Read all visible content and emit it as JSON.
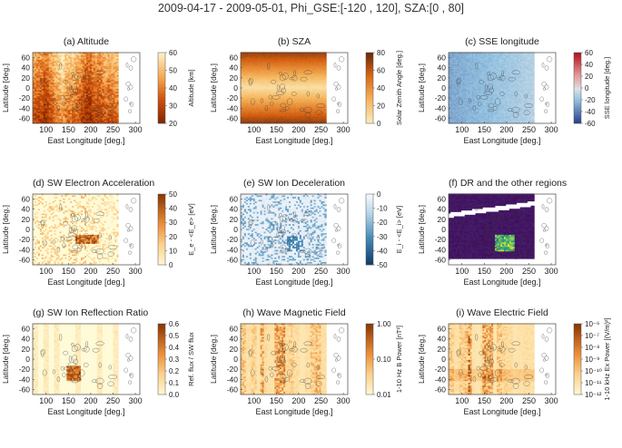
{
  "figure": {
    "title": "2009-04-17 - 2009-05-01, Phi_GSE:[-120 , 120], SZA:[0 , 80]"
  },
  "panels": [
    {
      "title": "(a) Altitude",
      "xlabel": "East Longitude [deg.]",
      "ylabel": "Latitude [deg.]",
      "cbar_label": "Altitude [km]",
      "cbar_ticks": [
        "60",
        "50",
        "40",
        "30",
        "20"
      ],
      "colormap": "heat-inverted",
      "pattern": "altitude"
    },
    {
      "title": "(b) SZA",
      "xlabel": "East Longitude [deg.]",
      "ylabel": "Latitude [deg.]",
      "cbar_label": "Solar Zenith Angle [deg.]",
      "cbar_ticks": [
        "80",
        "60",
        "40",
        "20",
        "0"
      ],
      "colormap": "heat",
      "pattern": "sza"
    },
    {
      "title": "(c) SSE longitude",
      "xlabel": "East Longitude [deg.]",
      "ylabel": "Latitude [deg.]",
      "cbar_label": "SSE longitude [deg.]",
      "cbar_ticks": [
        "60",
        "40",
        "20",
        "0",
        "-20",
        "-40",
        "-60"
      ],
      "colormap": "diverging",
      "pattern": "sse"
    },
    {
      "title": "(d) SW Electron Acceleration",
      "xlabel": "East Longitude [deg.]",
      "ylabel": "Latitude [deg.]",
      "cbar_label": "E_e - <E_e> [eV]",
      "cbar_ticks": [
        "50",
        "40",
        "30",
        "20",
        "10",
        "0"
      ],
      "colormap": "orange",
      "pattern": "electron"
    },
    {
      "title": "(e) SW Ion Deceleration",
      "xlabel": "East Longitude [deg.]",
      "ylabel": "Latitude [deg.]",
      "cbar_label": "E_i - <E_i> [eV]",
      "cbar_ticks": [
        "0",
        "-10",
        "-20",
        "-30",
        "-40",
        "-50"
      ],
      "colormap": "blue",
      "pattern": "ion"
    },
    {
      "title": "(f) DR and the other regions",
      "xlabel": "East Longitude [deg.]",
      "ylabel": "Latitude [deg.]",
      "cbar_label": "",
      "cbar_ticks": [],
      "colormap": "viridis",
      "pattern": "dr"
    },
    {
      "title": "(g) SW Ion Reflection Ratio",
      "xlabel": "East Longitude [deg.]",
      "ylabel": "Latitude [deg.]",
      "cbar_label": "Ref. flux / SW flux",
      "cbar_ticks": [
        "0.6",
        "0.5",
        "0.4",
        "0.3",
        "0.2",
        "0.1",
        "0.0"
      ],
      "colormap": "orange",
      "pattern": "reflect"
    },
    {
      "title": "(h) Wave Magnetic Field",
      "xlabel": "East Longitude [deg.]",
      "ylabel": "Latitude [deg.]",
      "cbar_label": "1-10 Hz B Power [nT²]",
      "cbar_ticks": [
        "1.00",
        "0.10",
        "0.01"
      ],
      "colormap": "orange",
      "pattern": "waveb"
    },
    {
      "title": "(i) Wave Electric Field",
      "xlabel": "East Longitude [deg.]",
      "ylabel": "Latitude [deg.]",
      "cbar_label": "1-10 kHz Ex Power [(V/m)²]",
      "cbar_ticks": [
        "10⁻⁶",
        "10⁻⁷",
        "10⁻⁸",
        "10⁻⁹",
        "10⁻¹⁰",
        "10⁻¹¹",
        "10⁻¹²"
      ],
      "colormap": "orange",
      "pattern": "wavee"
    }
  ],
  "chart_data": {
    "type": "heatmap",
    "title": "2009-04-17 - 2009-05-01, Phi_GSE:[-120 , 120], SZA:[0 , 80]",
    "xlabel": "East Longitude [deg.]",
    "ylabel": "Latitude [deg.]",
    "xlim": [
      70,
      310
    ],
    "ylim": [
      -70,
      70
    ],
    "x_ticks": [
      100,
      150,
      200,
      250,
      300
    ],
    "y_ticks": [
      60,
      40,
      20,
      0,
      -20,
      -40,
      -60
    ],
    "data_lon_range": [
      70,
      262
    ],
    "panels": [
      {
        "title": "(a) Altitude",
        "colorbar_range": [
          20,
          60
        ],
        "colorbar_label": "Altitude [km]"
      },
      {
        "title": "(b) SZA",
        "colorbar_range": [
          0,
          80
        ],
        "colorbar_label": "Solar Zenith Angle [deg.]"
      },
      {
        "title": "(c) SSE longitude",
        "colorbar_range": [
          -60,
          60
        ],
        "colorbar_label": "SSE longitude [deg.]"
      },
      {
        "title": "(d) SW Electron Acceleration",
        "colorbar_range": [
          0,
          50
        ],
        "colorbar_label": "E_e - <E_e> [eV]"
      },
      {
        "title": "(e) SW Ion Deceleration",
        "colorbar_range": [
          -50,
          0
        ],
        "colorbar_label": "E_i - <E_i> [eV]"
      },
      {
        "title": "(f) DR and the other regions",
        "colorbar_range": null,
        "colorbar_label": ""
      },
      {
        "title": "(g) SW Ion Reflection Ratio",
        "colorbar_range": [
          0.0,
          0.6
        ],
        "colorbar_label": "Ref. flux / SW flux"
      },
      {
        "title": "(h) Wave Magnetic Field",
        "colorbar_range": [
          0.01,
          1.0
        ],
        "colorbar_scale": "log",
        "colorbar_label": "1-10 Hz B Power [nT²]"
      },
      {
        "title": "(i) Wave Electric Field",
        "colorbar_range": [
          1e-12,
          1e-06
        ],
        "colorbar_scale": "log",
        "colorbar_label": "1-10 kHz Ex Power [(V/m)²]"
      }
    ],
    "grid": false
  }
}
